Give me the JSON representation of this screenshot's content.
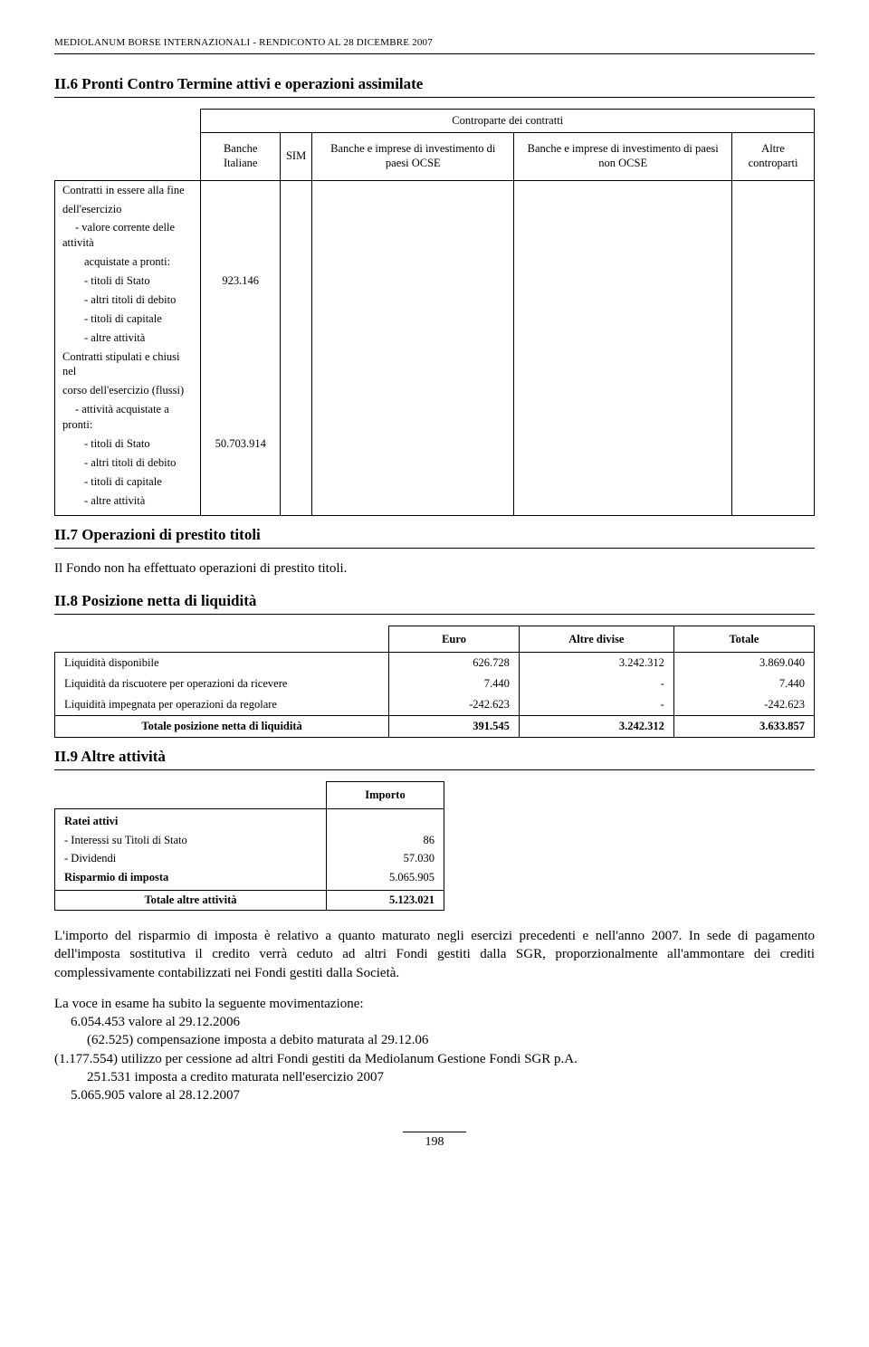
{
  "header": "MEDIOLANUM BORSE INTERNAZIONALI - RENDICONTO AL 28 DICEMBRE 2007",
  "ii6": {
    "title": "II.6 Pronti Contro Termine attivi e operazioni assimilate",
    "super_header": "Controparte dei contratti",
    "columns": [
      "",
      "Banche Italiane",
      "SIM",
      "Banche e imprese di investimento di paesi OCSE",
      "Banche e imprese di investimento di paesi non OCSE",
      "Altre controparti"
    ],
    "rows": [
      {
        "label": "Contratti in essere alla fine",
        "val": ""
      },
      {
        "label": "dell'esercizio",
        "val": ""
      },
      {
        "label": "- valore corrente delle attività",
        "indent": 1,
        "val": ""
      },
      {
        "label": "acquistate a pronti:",
        "indent": 2,
        "val": ""
      },
      {
        "label": "- titoli di Stato",
        "indent": 2,
        "val": "923.146"
      },
      {
        "label": "- altri titoli di debito",
        "indent": 2,
        "val": ""
      },
      {
        "label": "- titoli di capitale",
        "indent": 2,
        "val": ""
      },
      {
        "label": "- altre attività",
        "indent": 2,
        "val": ""
      },
      {
        "label": "Contratti stipulati e chiusi nel",
        "val": ""
      },
      {
        "label": "corso dell'esercizio (flussi)",
        "val": ""
      },
      {
        "label": "- attività acquistate a pronti:",
        "indent": 1,
        "val": ""
      },
      {
        "label": "- titoli di Stato",
        "indent": 2,
        "val": "50.703.914"
      },
      {
        "label": "- altri titoli di debito",
        "indent": 2,
        "val": ""
      },
      {
        "label": "- titoli di capitale",
        "indent": 2,
        "val": ""
      },
      {
        "label": "- altre attività",
        "indent": 2,
        "val": ""
      }
    ]
  },
  "ii7": {
    "title": "II.7 Operazioni di prestito titoli",
    "text": "Il Fondo non ha effettuato operazioni di prestito titoli."
  },
  "ii8": {
    "title": "II.8 Posizione netta di liquidità",
    "columns": [
      "",
      "Euro",
      "Altre divise",
      "Totale"
    ],
    "rows": [
      {
        "label": "Liquidità disponibile",
        "euro": "626.728",
        "divise": "3.242.312",
        "totale": "3.869.040"
      },
      {
        "label": "Liquidità da riscuotere per operazioni da ricevere",
        "euro": "7.440",
        "divise": "-",
        "totale": "7.440"
      },
      {
        "label": "Liquidità impegnata per operazioni da regolare",
        "euro": "-242.623",
        "divise": "-",
        "totale": "-242.623"
      }
    ],
    "total": {
      "label": "Totale posizione netta di liquidità",
      "euro": "391.545",
      "divise": "3.242.312",
      "totale": "3.633.857"
    }
  },
  "ii9": {
    "title": "II.9 Altre attività",
    "col": "Importo",
    "rows": [
      {
        "label": "Ratei attivi",
        "val": "",
        "bold": true
      },
      {
        "label": "- Interessi su Titoli di Stato",
        "val": "86"
      },
      {
        "label": "- Dividendi",
        "val": "57.030"
      },
      {
        "label": "Risparmio di imposta",
        "val": "5.065.905",
        "bold": true
      }
    ],
    "total": {
      "label": "Totale altre attività",
      "val": "5.123.021"
    },
    "para": "L'importo del risparmio di imposta è relativo a quanto maturato negli esercizi precedenti e nell'anno 2007. In sede di pagamento dell'imposta sostitutiva il credito verrà ceduto ad altri Fondi gestiti dalla SGR, proporzionalmente all'ammontare dei crediti complessivamente contabilizzati nei Fondi gestiti dalla Società.",
    "mov_intro": "La voce in esame ha subito la seguente movimentazione:",
    "mov": [
      {
        "text": "6.054.453 valore al 29.12.2006",
        "indent": 1
      },
      {
        "text": "(62.525) compensazione imposta a debito maturata al 29.12.06",
        "indent": 2
      },
      {
        "text": "(1.177.554) utilizzo per cessione ad altri Fondi gestiti da Mediolanum Gestione Fondi SGR p.A.",
        "indent": 0
      },
      {
        "text": "251.531 imposta a credito maturata nell'esercizio 2007",
        "indent": 2
      },
      {
        "text": "5.065.905 valore al 28.12.2007",
        "indent": 1
      }
    ]
  },
  "page": "198"
}
